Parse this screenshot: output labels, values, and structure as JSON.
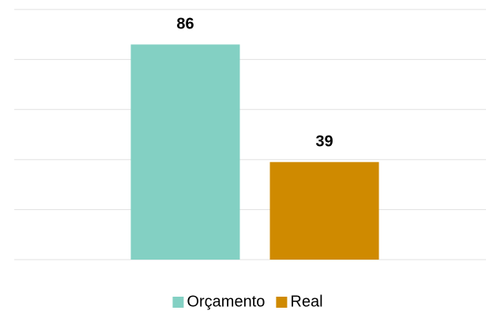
{
  "chart_data": {
    "type": "bar",
    "categories": [
      null
    ],
    "series": [
      {
        "name": "Orçamento",
        "color": "#83d0c3",
        "values": [
          86
        ]
      },
      {
        "name": "Real",
        "color": "#cf8a00",
        "values": [
          39
        ]
      }
    ],
    "ylim": [
      0,
      100
    ],
    "yticks": [
      0,
      20,
      40,
      60,
      80,
      100
    ],
    "grid": true,
    "legend": "bottom"
  }
}
